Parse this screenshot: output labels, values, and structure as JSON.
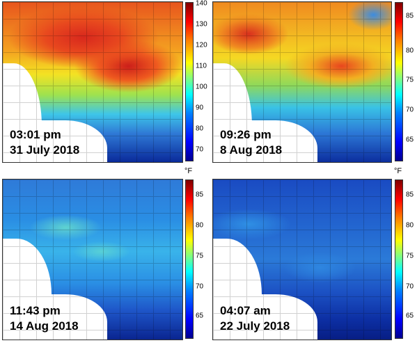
{
  "unit_label": "°F",
  "panels": [
    {
      "time": "03:01 pm",
      "date": "31 July 2018",
      "ticks": [
        "140",
        "130",
        "120",
        "110",
        "100",
        "90",
        "80",
        "70"
      ],
      "show_unit": false
    },
    {
      "time": "09:26 pm",
      "date": "8 Aug 2018",
      "ticks": [
        "85",
        "80",
        "75",
        "70",
        "65"
      ],
      "show_unit": false
    },
    {
      "time": "11:43 pm",
      "date": "14 Aug 2018",
      "ticks": [
        "85",
        "80",
        "75",
        "70",
        "65"
      ],
      "show_unit": true
    },
    {
      "time": "04:07 am",
      "date": "22 July 2018",
      "ticks": [
        "85",
        "80",
        "75",
        "70",
        "65"
      ],
      "show_unit": true
    }
  ]
}
